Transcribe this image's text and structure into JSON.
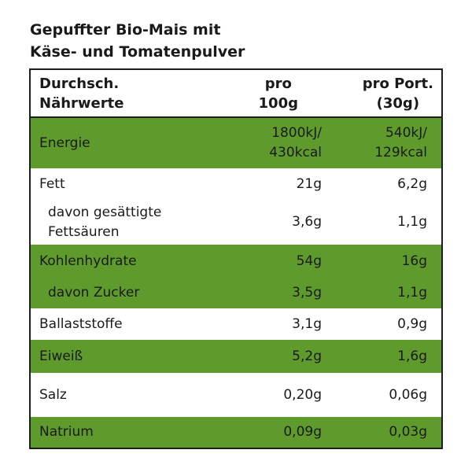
{
  "title": {
    "line1": "Gepuffter Bio-Mais mit",
    "line2": "Käse- und Tomatenpulver"
  },
  "header": {
    "col1_line1": "Durchsch.",
    "col1_line2": "Nährwerte",
    "col2_line1": "pro",
    "col2_line2": "100g",
    "col3_line1": "pro Port.",
    "col3_line2": "(30g)"
  },
  "rows": [
    {
      "label": "Energie",
      "per100_line1": "1800kJ/",
      "per100_line2": "430kcal",
      "portion_line1": "540kJ/",
      "portion_line2": "129kcal"
    },
    {
      "label": "Fett",
      "per100": "21g",
      "portion": "6,2g"
    },
    {
      "label_line1": "davon gesättigte",
      "label_line2": "Fettsäuren",
      "per100": "3,6g",
      "portion": "1,1g"
    },
    {
      "label": "Kohlenhydrate",
      "per100": "54g",
      "portion": "16g"
    },
    {
      "label": "davon Zucker",
      "per100": "3,5g",
      "portion": "1,1g"
    },
    {
      "label": "Ballaststoffe",
      "per100": "3,1g",
      "portion": "0,9g"
    },
    {
      "label": "Eiweiß",
      "per100": "5,2g",
      "portion": "1,6g"
    },
    {
      "label": "Salz",
      "per100": "0,20g",
      "portion": "0,06g"
    },
    {
      "label": "Natrium",
      "per100": "0,09g",
      "portion": "0,03g"
    }
  ],
  "colors": {
    "green_band": "#5f9a2c",
    "border": "#1e1e1e"
  }
}
